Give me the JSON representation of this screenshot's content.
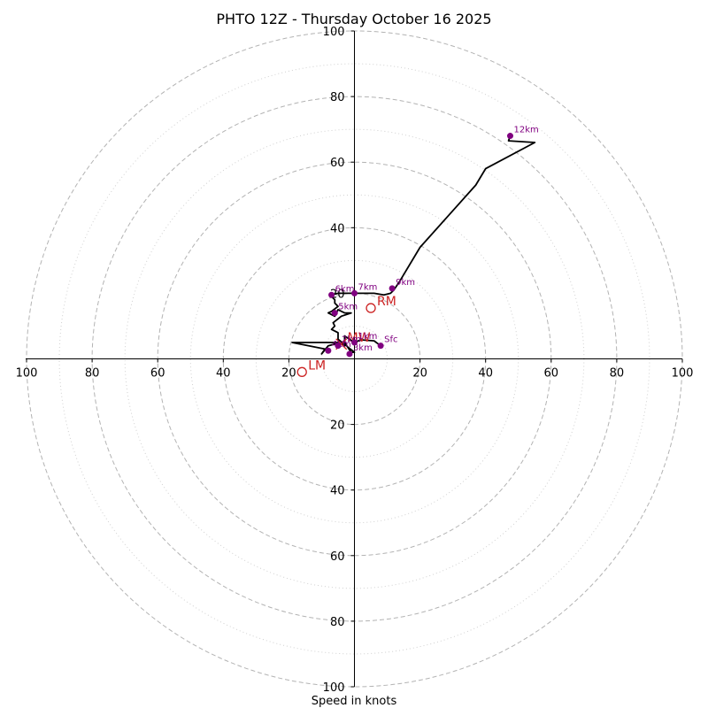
{
  "chart_data": {
    "type": "hodograph",
    "title": "PHTO 12Z - Thursday October 16 2025",
    "xlabel": "Speed in knots",
    "rings": [
      20,
      40,
      60,
      80,
      100
    ],
    "minor_rings": [
      10,
      30,
      50,
      70,
      90
    ],
    "tick_labels": {
      "right": [
        "20",
        "40",
        "60",
        "80",
        "100"
      ],
      "left": [
        "20",
        "40",
        "60",
        "80",
        "100"
      ],
      "top": [
        "20",
        "40",
        "60",
        "80",
        "100"
      ],
      "bottom": [
        "20",
        "40",
        "60",
        "80",
        "100"
      ]
    },
    "range": [
      -100,
      100
    ],
    "trace": [
      [
        8,
        4
      ],
      [
        6,
        5.5
      ],
      [
        2,
        5.8
      ],
      [
        0,
        5
      ],
      [
        -3,
        7
      ],
      [
        -3,
        4
      ],
      [
        -5,
        5
      ],
      [
        -8,
        5
      ],
      [
        -12,
        5
      ],
      [
        -19,
        5
      ],
      [
        -9,
        3
      ],
      [
        -10,
        1.5
      ],
      [
        -8,
        4
      ],
      [
        -6,
        4.5
      ],
      [
        -3,
        5
      ],
      [
        -1,
        2
      ],
      [
        0,
        2
      ],
      [
        -5,
        6
      ],
      [
        -5,
        8
      ],
      [
        -7,
        9
      ],
      [
        -6,
        10
      ],
      [
        -6.5,
        11
      ],
      [
        -4,
        13
      ],
      [
        -1,
        14
      ],
      [
        -3,
        14
      ],
      [
        -5,
        15
      ],
      [
        -6,
        13
      ],
      [
        -8,
        14
      ],
      [
        -7,
        14.5
      ],
      [
        -5,
        16
      ],
      [
        -6,
        17
      ],
      [
        -6,
        18
      ],
      [
        -7,
        19
      ],
      [
        -7,
        19.5
      ],
      [
        -7,
        19.5
      ],
      [
        -5,
        20
      ],
      [
        -3,
        20
      ],
      [
        0,
        20
      ],
      [
        3,
        20
      ],
      [
        6,
        20
      ],
      [
        9,
        19.5
      ],
      [
        11,
        20
      ],
      [
        12,
        21
      ],
      [
        14,
        24
      ],
      [
        20,
        34
      ],
      [
        37,
        53
      ],
      [
        40,
        58
      ],
      [
        55,
        66
      ],
      [
        47,
        66.5
      ],
      [
        47.5,
        68
      ]
    ],
    "levels": [
      {
        "label": "Sfc",
        "u": 8,
        "v": 4
      },
      {
        "label": "1km",
        "u": 0,
        "v": 5
      },
      {
        "label": "2km",
        "u": -5,
        "v": 4
      },
      {
        "label": "3km",
        "u": -1.5,
        "v": 1.5
      },
      {
        "label": "4km",
        "u": -8,
        "v": 2.5
      },
      {
        "label": "5km",
        "u": -6,
        "v": 14
      },
      {
        "label": "6km",
        "u": -7,
        "v": 19.5
      },
      {
        "label": "7km",
        "u": 0,
        "v": 20
      },
      {
        "label": "9km",
        "u": 11.5,
        "v": 21.5
      },
      {
        "label": "12km",
        "u": 47.5,
        "v": 68
      }
    ],
    "storm_motion": [
      {
        "label": "RM",
        "u": 5,
        "v": 15.5
      },
      {
        "label": "LM",
        "u": -16,
        "v": -4
      },
      {
        "label": "MW",
        "u": -4,
        "v": 4.5
      }
    ],
    "colors": {
      "trace": "#000000",
      "levels": "#800080",
      "storm_motion": "#cc2222",
      "rings": "#b3b3b3"
    }
  }
}
